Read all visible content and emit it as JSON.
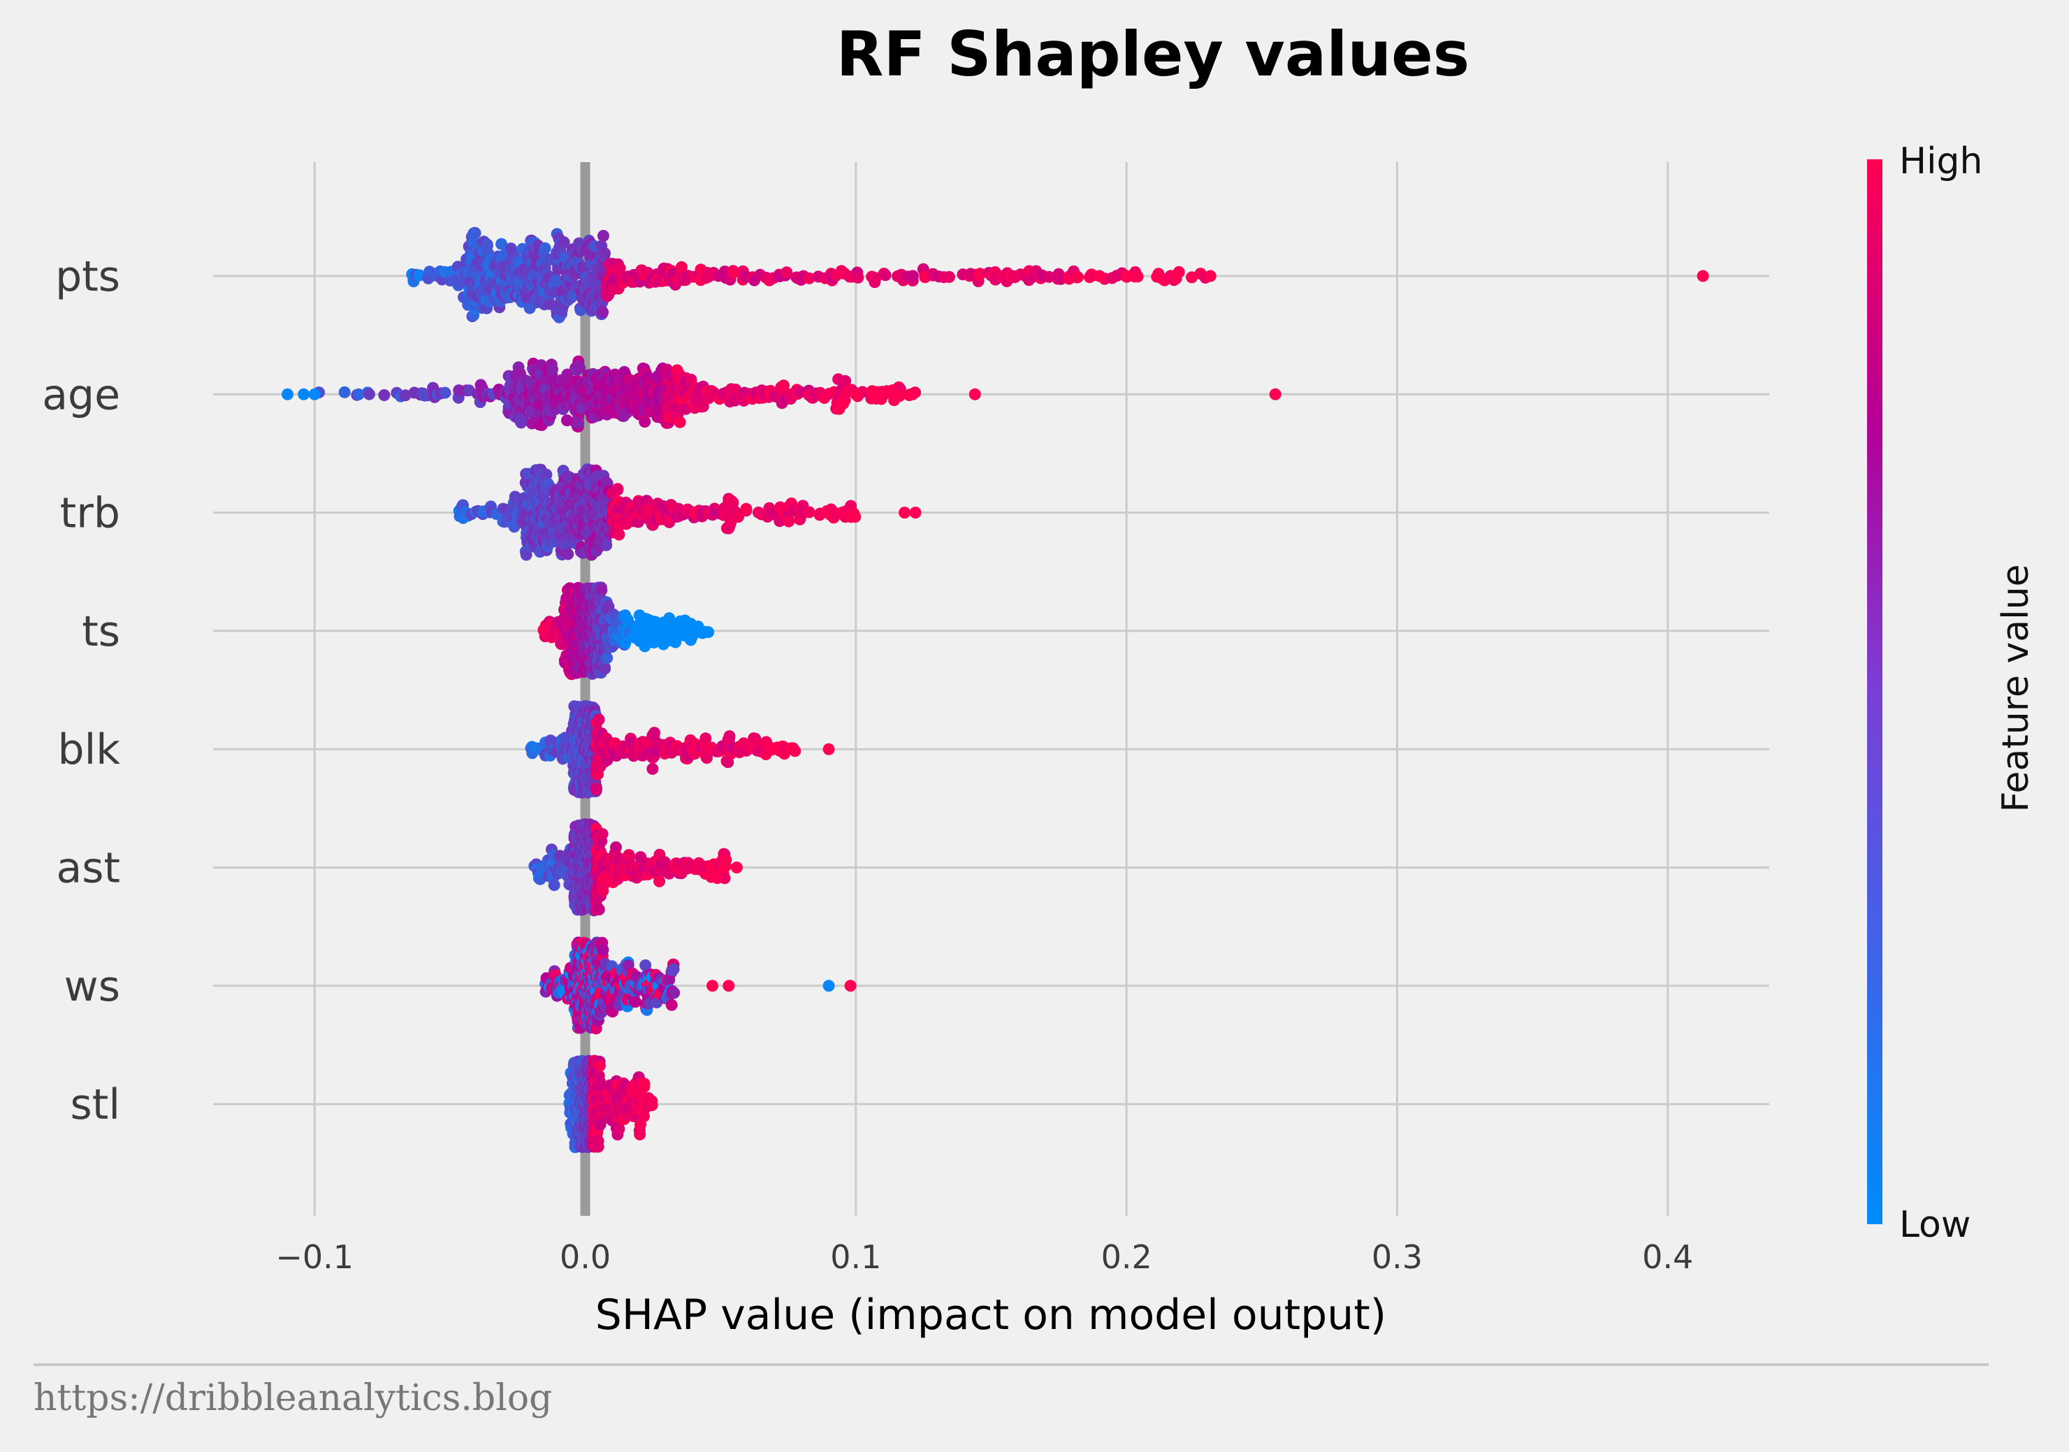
{
  "chart_data": {
    "type": "scatter",
    "subtype": "shap-beeswarm",
    "title": "RF Shapley values",
    "xlabel": "SHAP value (impact on model output)",
    "xlim": [
      -0.1375,
      0.4375
    ],
    "xticks": [
      -0.1,
      0.0,
      0.1,
      0.2,
      0.3,
      0.4
    ],
    "xtick_labels": [
      "−0.1",
      "0.0",
      "0.1",
      "0.2",
      "0.3",
      "0.4"
    ],
    "grid": true,
    "colorbar": {
      "label": "Feature value",
      "high_label": "High",
      "low_label": "Low",
      "low_color": "#008bfb",
      "mid_color": "#b40096",
      "high_color": "#ff0052"
    },
    "features": [
      {
        "name": "pts",
        "min": -0.065,
        "max": 0.231,
        "outliers": [
          0.19,
          0.2,
          0.212,
          0.218,
          0.231,
          0.413
        ],
        "core": [
          -0.042,
          0.008
        ],
        "trend": "positive"
      },
      {
        "name": "age",
        "min": -0.108,
        "max": 0.122,
        "outliers": [
          -0.11,
          -0.104,
          -0.1,
          0.1,
          0.108,
          0.115,
          0.121,
          0.144,
          0.255
        ],
        "core": [
          -0.028,
          0.03
        ],
        "trend": "positive"
      },
      {
        "name": "trb",
        "min": -0.047,
        "max": 0.1,
        "outliers": [
          0.118,
          0.122
        ],
        "core": [
          -0.022,
          0.01
        ],
        "trend": "positive"
      },
      {
        "name": "ts",
        "min": -0.016,
        "max": 0.046,
        "outliers": [],
        "core": [
          -0.006,
          0.006
        ],
        "trend": "negative"
      },
      {
        "name": "blk",
        "min": -0.02,
        "max": 0.078,
        "outliers": [
          0.09
        ],
        "core": [
          -0.004,
          0.004
        ],
        "trend": "positive"
      },
      {
        "name": "ast",
        "min": -0.02,
        "max": 0.052,
        "outliers": [
          0.056
        ],
        "core": [
          -0.004,
          0.004
        ],
        "trend": "positive"
      },
      {
        "name": "ws",
        "min": -0.015,
        "max": 0.033,
        "outliers": [
          0.047,
          0.053,
          0.09,
          0.098
        ],
        "core": [
          -0.003,
          0.004
        ],
        "trend": "mixed"
      },
      {
        "name": "stl",
        "min": -0.006,
        "max": 0.025,
        "outliers": [],
        "core": [
          -0.003,
          0.003
        ],
        "trend": "positive"
      }
    ]
  },
  "footer": {
    "source": "https://dribbleanalytics.blog"
  }
}
